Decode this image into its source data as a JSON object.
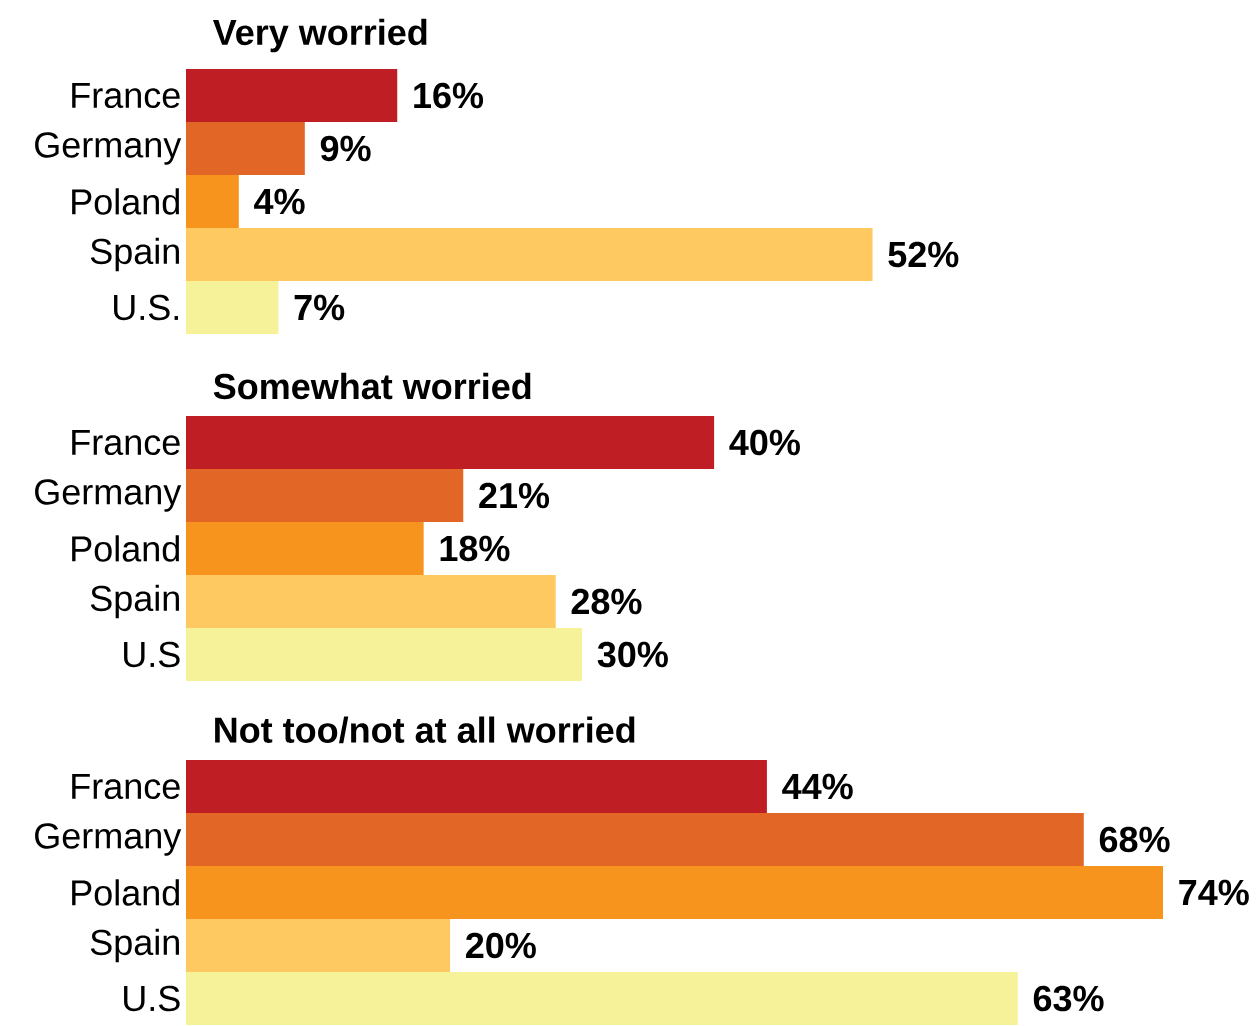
{
  "chart_data": [
    {
      "type": "bar",
      "orientation": "horizontal",
      "title": "Very worried",
      "categories": [
        "France",
        "Germany",
        "Poland",
        "Spain",
        "U.S."
      ],
      "values": [
        16,
        9,
        4,
        52,
        7
      ],
      "value_labels": [
        "16%",
        "9%",
        "4%",
        "52%",
        "7%"
      ],
      "colors": [
        "#be1e24",
        "#e26625",
        "#f7941e",
        "#fdc960",
        "#f6f29a"
      ],
      "tick_labels": "y"
    },
    {
      "type": "bar",
      "orientation": "horizontal",
      "title": "Somewhat worried",
      "categories": [
        "France",
        "Germany",
        "Poland",
        "Spain",
        "U.S"
      ],
      "values": [
        40,
        21,
        18,
        28,
        30
      ],
      "value_labels": [
        "40%",
        "21%",
        "18%",
        "28%",
        "30%"
      ],
      "colors": [
        "#be1e24",
        "#e26625",
        "#f7941e",
        "#fdc960",
        "#f6f29a"
      ],
      "tick_labels": "y"
    },
    {
      "type": "bar",
      "orientation": "horizontal",
      "title": "Not too/not at all worried",
      "categories": [
        "France",
        "Germany",
        "Poland",
        "Spain",
        "U.S"
      ],
      "values": [
        44,
        68,
        74,
        20,
        63
      ],
      "value_labels": [
        "44%",
        "68%",
        "74%",
        "20%",
        "63%"
      ],
      "colors": [
        "#be1e24",
        "#e26625",
        "#f7941e",
        "#fdc960",
        "#f6f29a"
      ],
      "tick_labels": "y"
    }
  ]
}
